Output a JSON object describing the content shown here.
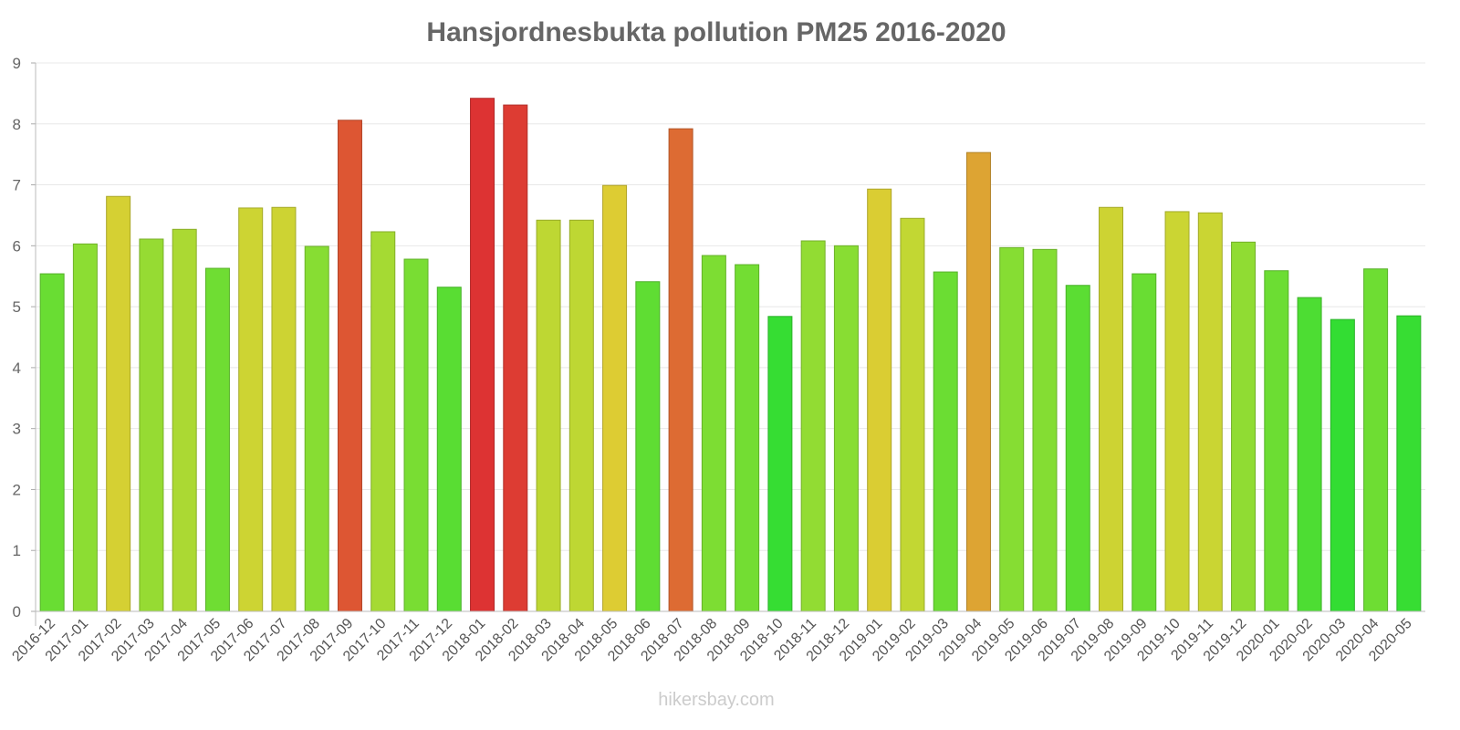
{
  "chart_data": {
    "type": "bar",
    "title": "Hansjordnesbukta pollution PM25 2016-2020",
    "xlabel": "",
    "ylabel": "",
    "ylim": [
      0,
      9
    ],
    "yticks": [
      "0",
      "1",
      "2",
      "3",
      "4",
      "5",
      "6",
      "7",
      "8",
      "9"
    ],
    "grid": true,
    "legend": "none",
    "categories": [
      "2016-12",
      "2017-01",
      "2017-02",
      "2017-03",
      "2017-04",
      "2017-05",
      "2017-06",
      "2017-07",
      "2017-08",
      "2017-09",
      "2017-10",
      "2017-11",
      "2017-12",
      "2018-01",
      "2018-02",
      "2018-03",
      "2018-04",
      "2018-05",
      "2018-06",
      "2018-07",
      "2018-08",
      "2018-09",
      "2018-10",
      "2018-11",
      "2018-12",
      "2019-01",
      "2019-02",
      "2019-03",
      "2019-04",
      "2019-05",
      "2019-06",
      "2019-07",
      "2019-08",
      "2019-09",
      "2019-10",
      "2019-11",
      "2019-12",
      "2020-01",
      "2020-02",
      "2020-03",
      "2020-04",
      "2020-05"
    ],
    "values": [
      5.54,
      6.03,
      6.81,
      6.11,
      6.27,
      5.63,
      6.62,
      6.63,
      5.99,
      8.06,
      6.23,
      5.78,
      5.32,
      8.42,
      8.31,
      6.42,
      6.42,
      6.99,
      5.41,
      7.92,
      5.84,
      5.69,
      4.84,
      6.08,
      6.0,
      6.93,
      6.45,
      5.57,
      7.53,
      5.97,
      5.94,
      5.35,
      6.63,
      5.54,
      6.56,
      6.54,
      6.06,
      5.59,
      5.15,
      4.79,
      5.62,
      4.85
    ]
  },
  "watermark": "hikersbay.com"
}
